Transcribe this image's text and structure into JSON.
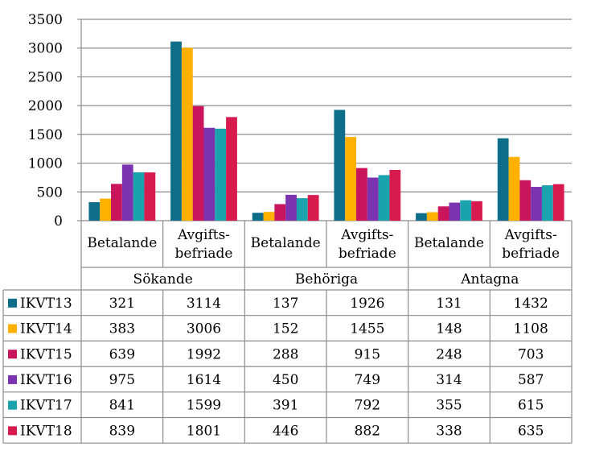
{
  "chart_data": {
    "type": "bar",
    "ylim": [
      0,
      3500
    ],
    "yticks": [
      "0",
      "500",
      "1000",
      "1500",
      "2000",
      "2500",
      "3000",
      "3500"
    ],
    "grid": true,
    "legend": "table-left",
    "groups": [
      {
        "label": "Sökande",
        "categories": [
          {
            "label": [
              "Betalande"
            ]
          },
          {
            "label": [
              "Avgifts-",
              "befriade"
            ]
          }
        ]
      },
      {
        "label": "Behöriga",
        "categories": [
          {
            "label": [
              "Betalande"
            ]
          },
          {
            "label": [
              "Avgifts-",
              "befriade"
            ]
          }
        ]
      },
      {
        "label": "Antagna",
        "categories": [
          {
            "label": [
              "Betalande"
            ]
          },
          {
            "label": [
              "Avgifts-",
              "befriade"
            ]
          }
        ]
      }
    ],
    "series": [
      {
        "name": "IKVT13",
        "color": "#0e6e8a",
        "values": [
          321,
          3114,
          137,
          1926,
          131,
          1432
        ]
      },
      {
        "name": "IKVT14",
        "color": "#ffb000",
        "values": [
          383,
          3006,
          152,
          1455,
          148,
          1108
        ]
      },
      {
        "name": "IKVT15",
        "color": "#c8155c",
        "values": [
          639,
          1992,
          288,
          915,
          248,
          703
        ]
      },
      {
        "name": "IKVT16",
        "color": "#7b33b0",
        "values": [
          975,
          1614,
          450,
          749,
          314,
          587
        ]
      },
      {
        "name": "IKVT17",
        "color": "#1aa3ad",
        "values": [
          841,
          1599,
          391,
          792,
          355,
          615
        ]
      },
      {
        "name": "IKVT18",
        "color": "#d81b4f",
        "values": [
          839,
          1801,
          446,
          882,
          338,
          635
        ]
      }
    ]
  }
}
